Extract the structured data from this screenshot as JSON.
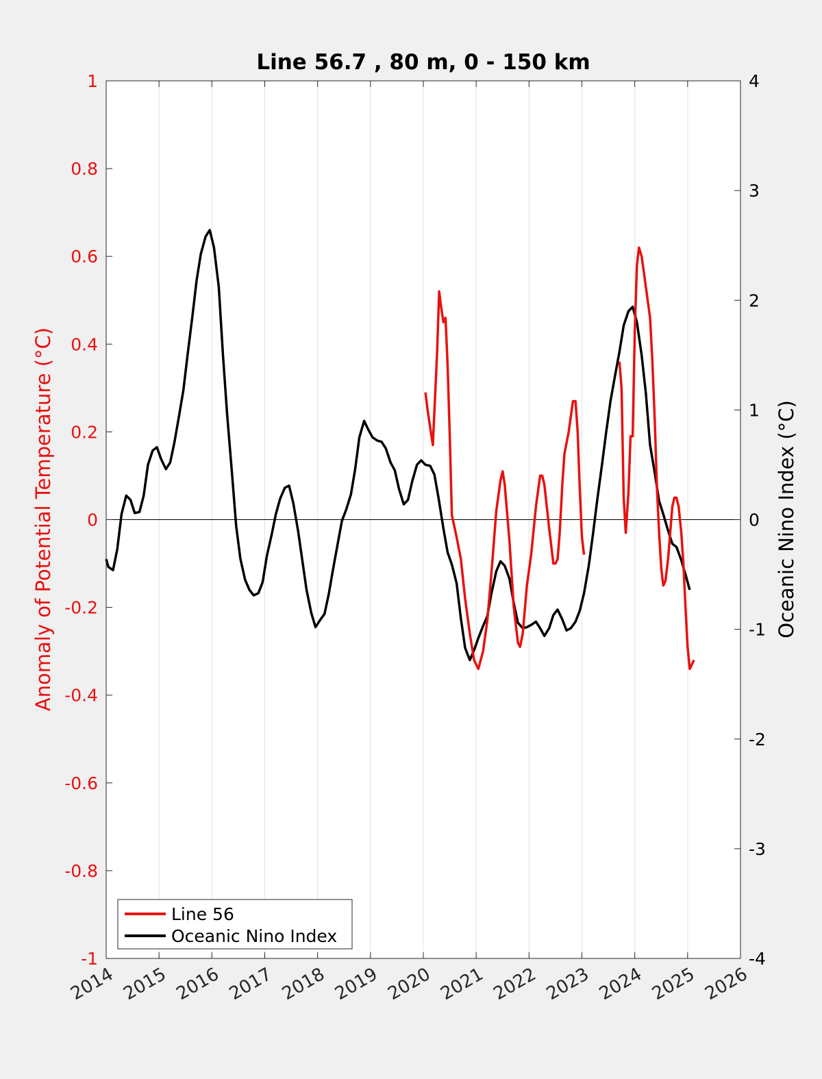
{
  "chart_data": {
    "type": "line",
    "title": "Line 56.7 , 80 m, 0 - 150 km",
    "ylabel_left": "Anomaly of Potential Temperature (°C)",
    "ylabel_right": "Oceanic Nino Index (°C)",
    "xlim": [
      2014,
      2026
    ],
    "ylim_left": [
      -1,
      1
    ],
    "ylim_right": [
      -4,
      4
    ],
    "x_ticks": [
      2014,
      2015,
      2016,
      2017,
      2018,
      2019,
      2020,
      2021,
      2022,
      2023,
      2024,
      2025,
      2026
    ],
    "y_ticks_left": [
      "1",
      "0.8",
      "0.6",
      "0.4",
      "0.2",
      "0",
      "-0.2",
      "-0.4",
      "-0.6",
      "-0.8",
      "-1"
    ],
    "y_ticks_left_values": [
      1,
      0.8,
      0.6,
      0.4,
      0.2,
      0,
      -0.2,
      -0.4,
      -0.6,
      -0.8,
      -1
    ],
    "y_ticks_right": [
      "4",
      "3",
      "2",
      "1",
      "0",
      "-1",
      "-2",
      "-3",
      "-4"
    ],
    "y_ticks_right_values": [
      4,
      3,
      2,
      1,
      0,
      -1,
      -2,
      -3,
      -4
    ],
    "grid": "vertical",
    "legend_position": "bottom-left",
    "colors": {
      "line56": "#e8110f",
      "oni": "#000000",
      "left_axis": "#e8110f",
      "right_axis": "#000000"
    },
    "series": [
      {
        "name": "Line 56",
        "axis": "left",
        "segments": [
          [
            [
              2020.04,
              0.29
            ],
            [
              2020.08,
              0.25
            ],
            [
              2020.13,
              0.21
            ],
            [
              2020.18,
              0.17
            ],
            [
              2020.26,
              0.38
            ],
            [
              2020.3,
              0.52
            ],
            [
              2020.33,
              0.49
            ],
            [
              2020.38,
              0.45
            ],
            [
              2020.42,
              0.46
            ],
            [
              2020.46,
              0.35
            ],
            [
              2020.5,
              0.19
            ],
            [
              2020.54,
              0.01
            ],
            [
              2020.63,
              -0.04
            ],
            [
              2020.71,
              -0.09
            ],
            [
              2020.79,
              -0.18
            ],
            [
              2020.88,
              -0.26
            ],
            [
              2020.96,
              -0.32
            ],
            [
              2021.04,
              -0.34
            ],
            [
              2021.13,
              -0.3
            ],
            [
              2021.21,
              -0.23
            ],
            [
              2021.29,
              -0.12
            ],
            [
              2021.38,
              0.02
            ],
            [
              2021.46,
              0.09
            ],
            [
              2021.5,
              0.11
            ],
            [
              2021.54,
              0.08
            ],
            [
              2021.63,
              -0.05
            ],
            [
              2021.71,
              -0.2
            ],
            [
              2021.79,
              -0.28
            ],
            [
              2021.83,
              -0.29
            ],
            [
              2021.88,
              -0.26
            ],
            [
              2021.96,
              -0.15
            ],
            [
              2022.04,
              -0.08
            ],
            [
              2022.13,
              0.03
            ],
            [
              2022.21,
              0.1
            ],
            [
              2022.25,
              0.1
            ],
            [
              2022.29,
              0.08
            ],
            [
              2022.38,
              -0.02
            ],
            [
              2022.46,
              -0.1
            ],
            [
              2022.5,
              -0.1
            ],
            [
              2022.54,
              -0.09
            ],
            [
              2022.58,
              -0.03
            ],
            [
              2022.63,
              0.08
            ],
            [
              2022.67,
              0.15
            ],
            [
              2022.75,
              0.2
            ],
            [
              2022.83,
              0.27
            ],
            [
              2022.88,
              0.27
            ],
            [
              2022.92,
              0.2
            ],
            [
              2022.96,
              0.07
            ],
            [
              2023.0,
              -0.04
            ],
            [
              2023.04,
              -0.08
            ]
          ],
          [
            [
              2023.71,
              0.36
            ],
            [
              2023.75,
              0.3
            ],
            [
              2023.79,
              0.05
            ],
            [
              2023.83,
              -0.03
            ],
            [
              2023.88,
              0.06
            ],
            [
              2023.92,
              0.19
            ],
            [
              2023.96,
              0.19
            ],
            [
              2024.0,
              0.43
            ],
            [
              2024.04,
              0.58
            ],
            [
              2024.08,
              0.62
            ],
            [
              2024.13,
              0.6
            ],
            [
              2024.21,
              0.53
            ],
            [
              2024.29,
              0.46
            ],
            [
              2024.33,
              0.37
            ],
            [
              2024.38,
              0.22
            ],
            [
              2024.42,
              0.07
            ],
            [
              2024.46,
              -0.03
            ],
            [
              2024.5,
              -0.11
            ],
            [
              2024.54,
              -0.15
            ],
            [
              2024.58,
              -0.14
            ],
            [
              2024.63,
              -0.09
            ],
            [
              2024.67,
              -0.03
            ],
            [
              2024.71,
              0.03
            ],
            [
              2024.75,
              0.05
            ],
            [
              2024.79,
              0.05
            ],
            [
              2024.83,
              0.03
            ],
            [
              2024.88,
              -0.03
            ],
            [
              2024.92,
              -0.1
            ],
            [
              2024.96,
              -0.2
            ],
            [
              2025.0,
              -0.29
            ],
            [
              2025.04,
              -0.34
            ],
            [
              2025.08,
              -0.33
            ],
            [
              2025.12,
              -0.32
            ]
          ]
        ]
      },
      {
        "name": "Oceanic Nino Index",
        "axis": "right",
        "points": [
          [
            2014.0,
            -0.36
          ],
          [
            2014.04,
            -0.43
          ],
          [
            2014.13,
            -0.46
          ],
          [
            2014.21,
            -0.27
          ],
          [
            2014.29,
            0.05
          ],
          [
            2014.38,
            0.22
          ],
          [
            2014.46,
            0.18
          ],
          [
            2014.54,
            0.06
          ],
          [
            2014.63,
            0.07
          ],
          [
            2014.71,
            0.22
          ],
          [
            2014.79,
            0.5
          ],
          [
            2014.88,
            0.63
          ],
          [
            2014.96,
            0.66
          ],
          [
            2015.04,
            0.55
          ],
          [
            2015.13,
            0.46
          ],
          [
            2015.21,
            0.52
          ],
          [
            2015.29,
            0.7
          ],
          [
            2015.38,
            0.95
          ],
          [
            2015.46,
            1.18
          ],
          [
            2015.54,
            1.5
          ],
          [
            2015.63,
            1.85
          ],
          [
            2015.71,
            2.18
          ],
          [
            2015.79,
            2.42
          ],
          [
            2015.88,
            2.58
          ],
          [
            2015.96,
            2.64
          ],
          [
            2016.04,
            2.48
          ],
          [
            2016.13,
            2.12
          ],
          [
            2016.21,
            1.5
          ],
          [
            2016.29,
            0.95
          ],
          [
            2016.38,
            0.42
          ],
          [
            2016.46,
            -0.06
          ],
          [
            2016.54,
            -0.36
          ],
          [
            2016.63,
            -0.55
          ],
          [
            2016.71,
            -0.64
          ],
          [
            2016.79,
            -0.69
          ],
          [
            2016.88,
            -0.67
          ],
          [
            2016.96,
            -0.57
          ],
          [
            2017.04,
            -0.33
          ],
          [
            2017.13,
            -0.14
          ],
          [
            2017.21,
            0.05
          ],
          [
            2017.29,
            0.19
          ],
          [
            2017.38,
            0.29
          ],
          [
            2017.46,
            0.31
          ],
          [
            2017.54,
            0.15
          ],
          [
            2017.63,
            -0.1
          ],
          [
            2017.71,
            -0.37
          ],
          [
            2017.79,
            -0.64
          ],
          [
            2017.88,
            -0.85
          ],
          [
            2017.96,
            -0.98
          ],
          [
            2018.04,
            -0.92
          ],
          [
            2018.13,
            -0.86
          ],
          [
            2018.21,
            -0.68
          ],
          [
            2018.29,
            -0.46
          ],
          [
            2018.38,
            -0.22
          ],
          [
            2018.46,
            -0.01
          ],
          [
            2018.54,
            0.09
          ],
          [
            2018.63,
            0.23
          ],
          [
            2018.71,
            0.46
          ],
          [
            2018.79,
            0.75
          ],
          [
            2018.88,
            0.9
          ],
          [
            2018.96,
            0.82
          ],
          [
            2019.04,
            0.75
          ],
          [
            2019.13,
            0.72
          ],
          [
            2019.21,
            0.71
          ],
          [
            2019.29,
            0.65
          ],
          [
            2019.38,
            0.52
          ],
          [
            2019.46,
            0.45
          ],
          [
            2019.54,
            0.28
          ],
          [
            2019.63,
            0.14
          ],
          [
            2019.71,
            0.18
          ],
          [
            2019.79,
            0.35
          ],
          [
            2019.88,
            0.5
          ],
          [
            2019.96,
            0.54
          ],
          [
            2020.04,
            0.5
          ],
          [
            2020.13,
            0.49
          ],
          [
            2020.21,
            0.41
          ],
          [
            2020.29,
            0.19
          ],
          [
            2020.38,
            -0.08
          ],
          [
            2020.46,
            -0.3
          ],
          [
            2020.54,
            -0.41
          ],
          [
            2020.63,
            -0.58
          ],
          [
            2020.71,
            -0.9
          ],
          [
            2020.79,
            -1.17
          ],
          [
            2020.88,
            -1.28
          ],
          [
            2020.96,
            -1.19
          ],
          [
            2021.04,
            -1.08
          ],
          [
            2021.13,
            -0.97
          ],
          [
            2021.21,
            -0.88
          ],
          [
            2021.29,
            -0.67
          ],
          [
            2021.38,
            -0.47
          ],
          [
            2021.46,
            -0.38
          ],
          [
            2021.54,
            -0.42
          ],
          [
            2021.63,
            -0.54
          ],
          [
            2021.71,
            -0.76
          ],
          [
            2021.79,
            -0.94
          ],
          [
            2021.88,
            -0.99
          ],
          [
            2021.96,
            -0.98
          ],
          [
            2022.04,
            -0.96
          ],
          [
            2022.13,
            -0.93
          ],
          [
            2022.21,
            -0.99
          ],
          [
            2022.29,
            -1.06
          ],
          [
            2022.38,
            -0.99
          ],
          [
            2022.46,
            -0.87
          ],
          [
            2022.54,
            -0.82
          ],
          [
            2022.63,
            -0.91
          ],
          [
            2022.71,
            -1.01
          ],
          [
            2022.79,
            -0.99
          ],
          [
            2022.88,
            -0.93
          ],
          [
            2022.96,
            -0.83
          ],
          [
            2023.04,
            -0.67
          ],
          [
            2023.13,
            -0.42
          ],
          [
            2023.21,
            -0.13
          ],
          [
            2023.29,
            0.18
          ],
          [
            2023.38,
            0.5
          ],
          [
            2023.46,
            0.8
          ],
          [
            2023.54,
            1.08
          ],
          [
            2023.63,
            1.32
          ],
          [
            2023.71,
            1.53
          ],
          [
            2023.79,
            1.77
          ],
          [
            2023.88,
            1.9
          ],
          [
            2023.96,
            1.94
          ],
          [
            2024.04,
            1.8
          ],
          [
            2024.13,
            1.5
          ],
          [
            2024.21,
            1.15
          ],
          [
            2024.29,
            0.68
          ],
          [
            2024.38,
            0.42
          ],
          [
            2024.46,
            0.17
          ],
          [
            2024.54,
            0.05
          ],
          [
            2024.63,
            -0.1
          ],
          [
            2024.71,
            -0.22
          ],
          [
            2024.79,
            -0.25
          ],
          [
            2024.88,
            -0.37
          ],
          [
            2024.96,
            -0.5
          ],
          [
            2025.04,
            -0.64
          ]
        ]
      }
    ]
  }
}
